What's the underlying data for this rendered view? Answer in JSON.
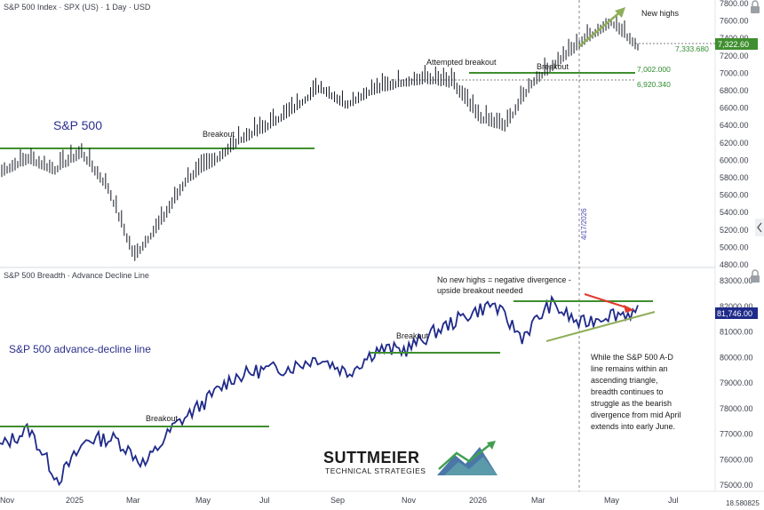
{
  "panels": {
    "price": {
      "title": "S&P 500 Index · SPX (US) · 1 Day · USD",
      "label": "S&P 500",
      "y_ticks": [
        "7800.00",
        "7600.00",
        "7400.00",
        "7200.00",
        "7000.00",
        "6800.00",
        "6600.00",
        "6400.00",
        "6200.00",
        "6000.00",
        "5800.00",
        "5600.00",
        "5400.00",
        "5200.00",
        "5000.00",
        "4800.00"
      ],
      "annotations": {
        "new_highs": "New highs",
        "breakout_left": "Breakout",
        "attempted_breakout": "Attempted breakout",
        "breakout_right": "Breakout",
        "date_marker": "4/17/2026"
      },
      "levels": {
        "current": "7,322.60",
        "dotted_high": "7,333.680",
        "support1": "7,002.000",
        "support2": "6,920.340"
      }
    },
    "breadth": {
      "title": "S&P 500 Breadth · Advance Decline Line",
      "label": "S&P 500 advance-decline line",
      "y_ticks": [
        "83000.00",
        "82000.00",
        "81000.00",
        "80000.00",
        "79000.00",
        "78000.00",
        "77000.00",
        "76000.00",
        "75000.00"
      ],
      "current": "81,746.00",
      "annotations": {
        "divergence_line1": "No new highs = negative divergence -",
        "divergence_line2": "upside breakout needed",
        "breakout_mid": "Breakout",
        "breakout_left": "Breakout"
      },
      "commentary": [
        "While the S&P 500 A-D",
        "line remains within an",
        "ascending triangle,",
        "breadth continues to",
        "struggle as the bearish",
        "divergence from mid April",
        "extends into early June."
      ]
    }
  },
  "x_ticks": [
    "Nov",
    "2025",
    "Mar",
    "May",
    "Jul",
    "Sep",
    "Nov",
    "2026",
    "Mar",
    "May",
    "Jul"
  ],
  "bottom_right_value": "18.580825",
  "logo": {
    "name": "SUTTMEIER",
    "subtitle": "TECHNICAL STRATEGIES"
  },
  "colors": {
    "line": "#1f2a8a",
    "level": "#3f8f2f",
    "arrow_up": "#8fae5a",
    "arrow_down": "#e03a2f",
    "triangle_top": "#3f8f2f",
    "triangle_bottom": "#8fae5a"
  },
  "chart_data": [
    {
      "type": "line",
      "title": "S&P 500 Index · SPX (US) · 1 Day · USD",
      "ylim": [
        4800,
        7800
      ],
      "x_ticks": [
        "Nov",
        "2025",
        "Mar",
        "May",
        "Jul",
        "Sep",
        "Nov",
        "2026",
        "Mar",
        "May",
        "Jul"
      ],
      "series": [
        {
          "name": "S&P 500",
          "points": [
            [
              "Nov",
              5880
            ],
            [
              "Dec",
              6030
            ],
            [
              "2025",
              5900
            ],
            [
              "Feb",
              6100
            ],
            [
              "Mar",
              5700
            ],
            [
              "Apr",
              4900
            ],
            [
              "Apr",
              5300
            ],
            [
              "May",
              5800
            ],
            [
              "Jun",
              6000
            ],
            [
              "Jul",
              6250
            ],
            [
              "Aug",
              6400
            ],
            [
              "Sep",
              6600
            ],
            [
              "Oct",
              6850
            ],
            [
              "Nov",
              6650
            ],
            [
              "Nov",
              6820
            ],
            [
              "Dec",
              6900
            ],
            [
              "2026",
              6950
            ],
            [
              "Feb",
              6900
            ],
            [
              "Mar",
              6500
            ],
            [
              "Mar",
              6400
            ],
            [
              "Apr",
              6900
            ],
            [
              "Apr",
              7150
            ],
            [
              "May",
              7400
            ],
            [
              "May",
              7600
            ],
            [
              "Jun",
              7320
            ]
          ]
        }
      ],
      "levels": [
        6150,
        7002.0,
        6920.34,
        7333.68,
        7322.6
      ]
    },
    {
      "type": "line",
      "title": "S&P 500 Breadth · Advance Decline Line",
      "ylim": [
        75000,
        83000
      ],
      "x_ticks": [
        "Nov",
        "2025",
        "Mar",
        "May",
        "Jul",
        "Sep",
        "Nov",
        "2026",
        "Mar",
        "May",
        "Jul"
      ],
      "series": [
        {
          "name": "S&P 500 advance-decline line",
          "points": [
            [
              "Nov",
              76500
            ],
            [
              "Dec",
              77200
            ],
            [
              "2025",
              75200
            ],
            [
              "Feb",
              76800
            ],
            [
              "Mar",
              76800
            ],
            [
              "Apr",
              75800
            ],
            [
              "May",
              77300
            ],
            [
              "Jun",
              78200
            ],
            [
              "Jul",
              79200
            ],
            [
              "Aug",
              79500
            ],
            [
              "Sep",
              79600
            ],
            [
              "Oct",
              80000
            ],
            [
              "Nov",
              79400
            ],
            [
              "Nov",
              80300
            ],
            [
              "Dec",
              80300
            ],
            [
              "2026",
              81000
            ],
            [
              "Feb",
              81600
            ],
            [
              "Mar",
              82100
            ],
            [
              "Mar",
              80800
            ],
            [
              "Apr",
              82100
            ],
            [
              "May",
              81300
            ],
            [
              "May",
              81700
            ],
            [
              "Jun",
              81746
            ]
          ]
        }
      ],
      "levels": [
        82100,
        80200,
        77300
      ]
    }
  ]
}
